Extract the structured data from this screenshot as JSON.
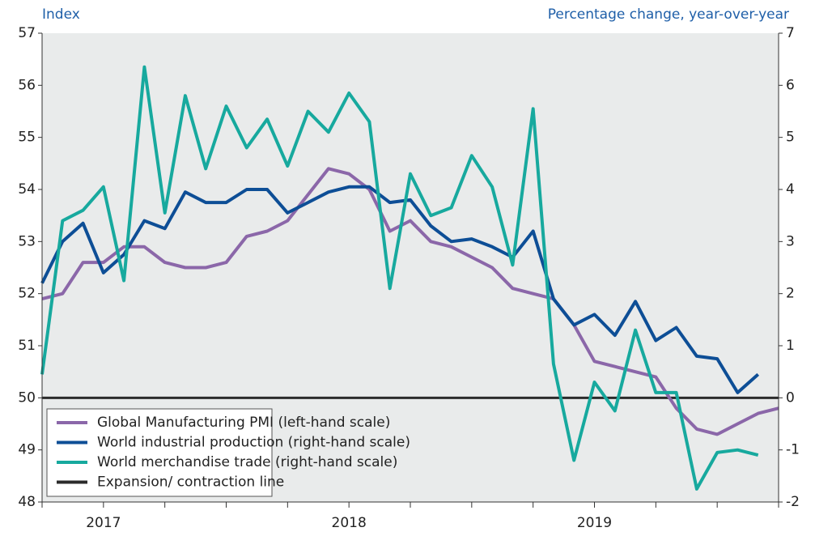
{
  "chart_data": {
    "type": "line",
    "left_axis_label": "Index",
    "right_axis_label": "Percentage change, year-over-year",
    "categories": [
      null,
      null,
      null,
      "2017",
      null,
      null,
      null,
      null,
      null,
      null,
      null,
      null,
      null,
      null,
      null,
      "2018",
      null,
      null,
      null,
      null,
      null,
      null,
      null,
      null,
      null,
      null,
      null,
      "2019",
      null,
      null,
      null,
      null,
      null,
      null,
      null,
      null,
      null
    ],
    "ylim": [
      48,
      57
    ],
    "yticks": [
      48,
      49,
      50,
      51,
      52,
      53,
      54,
      55,
      56,
      57
    ],
    "y2lim": [
      -2,
      7
    ],
    "y2ticks": [
      -2,
      -1,
      0,
      1,
      2,
      3,
      4,
      5,
      6,
      7
    ],
    "series": [
      {
        "name": "Global Manufacturing PMI (left-hand scale)",
        "color": "#8b67a9",
        "axis": "y",
        "values": [
          51.9,
          52.0,
          52.6,
          52.6,
          52.9,
          52.9,
          52.6,
          52.5,
          52.5,
          52.6,
          53.1,
          53.2,
          53.4,
          53.9,
          54.4,
          54.3,
          54.0,
          53.2,
          53.4,
          53.0,
          52.9,
          52.7,
          52.5,
          52.1,
          52.0,
          51.9,
          51.4,
          50.7,
          50.6,
          50.5,
          50.4,
          49.8,
          49.4,
          49.3,
          49.5,
          49.7,
          49.8
        ]
      },
      {
        "name": "World industrial production (right-hand scale)",
        "color": "#0d4e96",
        "axis": "y2",
        "values": [
          2.2,
          3.0,
          3.35,
          2.4,
          2.75,
          3.4,
          3.25,
          3.95,
          3.75,
          3.75,
          4.0,
          4.0,
          3.55,
          3.75,
          3.95,
          4.05,
          4.05,
          3.75,
          3.8,
          3.3,
          3.0,
          3.05,
          2.9,
          2.7,
          3.2,
          1.9,
          1.4,
          1.6,
          1.2,
          1.85,
          1.1,
          1.35,
          0.8,
          0.75,
          0.1,
          0.45,
          null
        ]
      },
      {
        "name": "World merchandise trade (right-hand scale)",
        "color": "#17a99e",
        "axis": "y2",
        "values": [
          0.45,
          3.4,
          3.6,
          4.05,
          2.25,
          6.35,
          3.55,
          5.8,
          4.4,
          5.6,
          4.8,
          5.35,
          4.45,
          5.5,
          5.1,
          5.85,
          5.3,
          2.1,
          4.3,
          3.5,
          3.65,
          4.65,
          4.05,
          2.55,
          5.55,
          0.65,
          -1.2,
          0.3,
          -0.25,
          1.3,
          0.1,
          0.1,
          -1.75,
          -1.05,
          -1.0,
          -1.1,
          null
        ]
      }
    ],
    "reference_line": {
      "name": "Expansion/ contraction line",
      "value": 50,
      "color": "#2b2b2b",
      "axis": "y"
    }
  }
}
